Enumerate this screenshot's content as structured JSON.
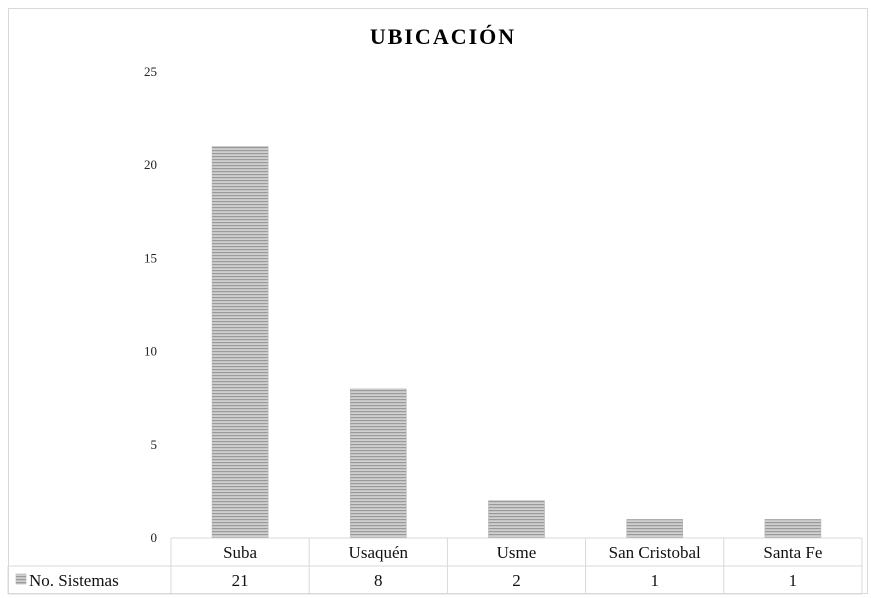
{
  "chart_data": {
    "type": "bar",
    "title": "UBICACIÓN",
    "categories": [
      "Suba",
      "Usaquén",
      "Usme",
      "San Cristobal",
      "Santa Fe"
    ],
    "series": [
      {
        "name": "No. Sistemas",
        "values": [
          21,
          8,
          2,
          1,
          1
        ]
      }
    ],
    "ylim": [
      0,
      25
    ],
    "yticks": [
      0,
      5,
      10,
      15,
      20,
      25
    ],
    "grid": false,
    "legend": "data-table-left",
    "bar_color": "#bfbfbf",
    "bar_stripe_color": "#9a9a9a"
  }
}
